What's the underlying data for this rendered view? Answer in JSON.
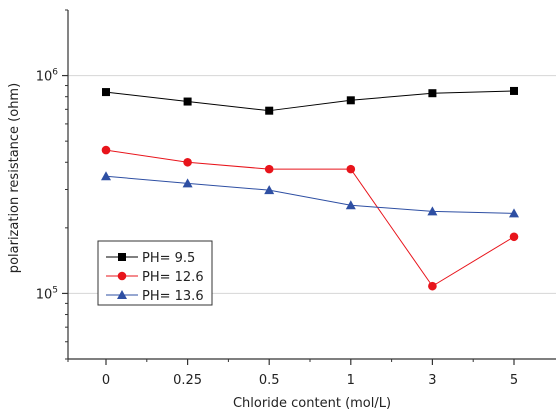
{
  "chart_data": {
    "type": "line",
    "title": "",
    "xlabel": "Chloride content (mol/L)",
    "ylabel": "polarization resistance (ohm)",
    "categories": [
      "0",
      "0.25",
      "0.5",
      "1",
      "3",
      "5"
    ],
    "y_scale": "log",
    "ylim": [
      50000,
      2000000
    ],
    "y_ticks": [
      {
        "value": 100000,
        "base": "10",
        "exp": "5"
      },
      {
        "value": 1000000,
        "base": "10",
        "exp": "6"
      }
    ],
    "grid": "horizontal lines at major ticks",
    "legend_placement": "lower-left",
    "series": [
      {
        "name": "PH= 9.5",
        "color": "#000000",
        "marker": "square",
        "values": [
          840000,
          760000,
          690000,
          770000,
          830000,
          850000
        ]
      },
      {
        "name": "PH= 12.6",
        "color": "#e8141b",
        "marker": "circle",
        "values": [
          455000,
          400000,
          372000,
          372000,
          108000,
          182000
        ]
      },
      {
        "name": "PH= 13.6",
        "color": "#2e4fa3",
        "marker": "triangle",
        "values": [
          345000,
          320000,
          298000,
          254000,
          238000,
          233000
        ]
      }
    ]
  }
}
